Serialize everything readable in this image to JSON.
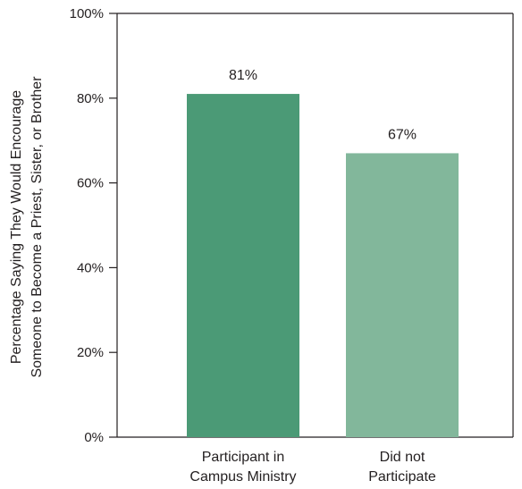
{
  "chart_data": {
    "type": "bar",
    "categories": [
      [
        "Participant in",
        "Campus Ministry"
      ],
      [
        "Did not",
        "Participate"
      ]
    ],
    "values": [
      81,
      67
    ],
    "data_labels": [
      "81%",
      "67%"
    ],
    "colors": [
      "#4b9a76",
      "#82b79b"
    ],
    "ylabel": [
      "Percentage Saying They Would Encourage",
      "Someone to Become a Priest, Sister, or Brother"
    ],
    "ylim": [
      0,
      100
    ],
    "yticks": [
      0,
      20,
      40,
      60,
      80,
      100
    ],
    "ytick_labels": [
      "0%",
      "20%",
      "40%",
      "60%",
      "80%",
      "100%"
    ],
    "grid": false,
    "legend": false
  }
}
